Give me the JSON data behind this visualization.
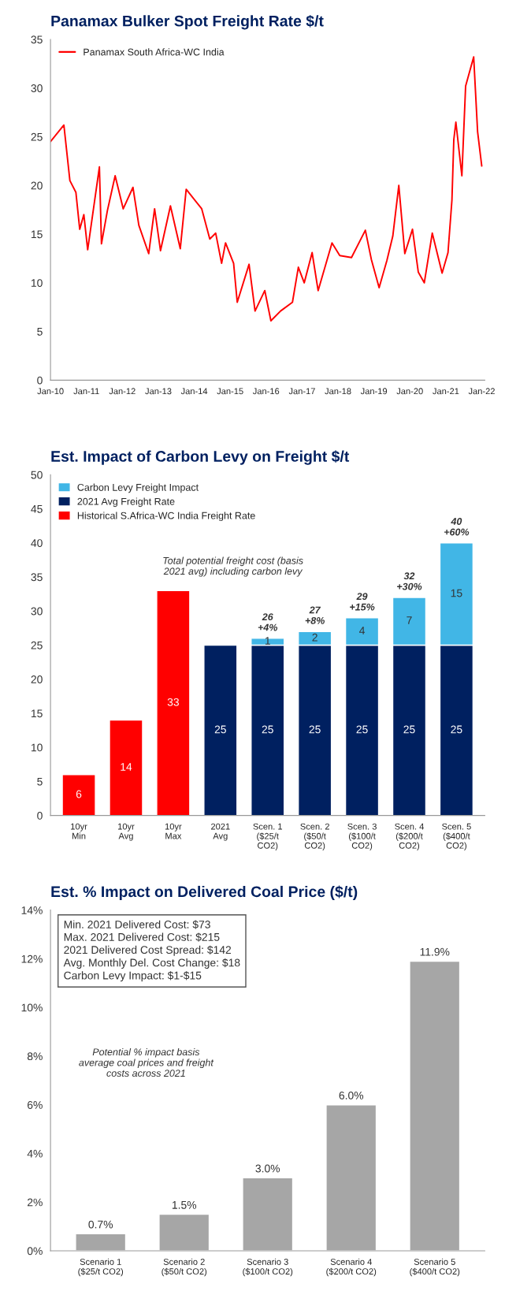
{
  "chart_data": [
    {
      "type": "line",
      "title": "Panamax Bulker Spot Freight Rate $/t",
      "legend": "top left",
      "xlim": [
        "2010-01-01",
        "2022-02-01"
      ],
      "xticks": [
        {
          "value": "2010-01-01",
          "label": "Jan-10"
        },
        {
          "value": "2011-01-01",
          "label": "Jan-11"
        },
        {
          "value": "2012-01-01",
          "label": "Jan-12"
        },
        {
          "value": "2013-01-01",
          "label": "Jan-13"
        },
        {
          "value": "2014-01-01",
          "label": "Jan-14"
        },
        {
          "value": "2015-01-01",
          "label": "Jan-15"
        },
        {
          "value": "2016-01-01",
          "label": "Jan-16"
        },
        {
          "value": "2017-01-01",
          "label": "Jan-17"
        },
        {
          "value": "2018-01-01",
          "label": "Jan-18"
        },
        {
          "value": "2019-01-01",
          "label": "Jan-19"
        },
        {
          "value": "2020-01-01",
          "label": "Jan-20"
        },
        {
          "value": "2021-01-01",
          "label": "Jan-21"
        },
        {
          "value": "2022-01-01",
          "label": "Jan-22"
        }
      ],
      "ylim": [
        0,
        35
      ],
      "yticks": [
        0,
        5,
        10,
        15,
        20,
        25,
        30,
        35
      ],
      "series": [
        {
          "name": "Panamax South Africa-WC India",
          "color": "#ff0000",
          "x": [
            "2010-01-01",
            "2010-05-17",
            "2010-07-17",
            "2010-09-16",
            "2010-10-25",
            "2010-12-06",
            "2011-01-14",
            "2011-05-13",
            "2011-06-03",
            "2011-08-02",
            "2011-10-20",
            "2012-01-10",
            "2012-04-18",
            "2012-06-17",
            "2012-09-25",
            "2012-11-24",
            "2013-01-23",
            "2013-05-04",
            "2013-08-12",
            "2013-10-11",
            "2014-03-18",
            "2014-06-08",
            "2014-08-07",
            "2014-10-06",
            "2014-11-15",
            "2015-02-05",
            "2015-03-14",
            "2015-07-12",
            "2015-09-11",
            "2015-12-19",
            "2016-02-19",
            "2016-05-27",
            "2016-09-25",
            "2016-11-24",
            "2017-01-23",
            "2017-04-13",
            "2017-06-13",
            "2017-11-01",
            "2018-01-19",
            "2018-05-18",
            "2018-10-06",
            "2018-12-06",
            "2019-02-23",
            "2019-05-13",
            "2019-07-12",
            "2019-09-11",
            "2019-11-11",
            "2020-01-28",
            "2020-03-27",
            "2020-05-27",
            "2020-08-16",
            "2020-11-24",
            "2021-01-23",
            "2021-03-04",
            "2021-03-23",
            "2021-04-13",
            "2021-06-13",
            "2021-07-21",
            "2021-10-11",
            "2021-11-20",
            "2022-01-01"
          ],
          "values": [
            24.5,
            26.2,
            20.5,
            19.3,
            15.5,
            17.0,
            13.4,
            21.9,
            14.0,
            17.4,
            21.0,
            17.6,
            19.8,
            15.9,
            13.0,
            17.6,
            13.3,
            17.9,
            13.5,
            19.6,
            17.6,
            14.5,
            15.1,
            12.0,
            14.1,
            12.0,
            8.0,
            11.9,
            7.1,
            9.2,
            6.1,
            7.1,
            8.0,
            11.6,
            10.0,
            13.1,
            9.2,
            14.1,
            12.8,
            12.6,
            15.4,
            12.4,
            9.5,
            12.3,
            14.8,
            20.0,
            13.0,
            15.5,
            11.1,
            10.0,
            15.1,
            11.0,
            13.1,
            18.5,
            24.7,
            26.5,
            21.0,
            30.2,
            33.2,
            25.5,
            22.0
          ]
        }
      ]
    },
    {
      "type": "bar",
      "title": "Est. Impact of Carbon Levy on Freight $/t",
      "stacked": true,
      "legend": "top left",
      "data_labels": true,
      "categories": [
        "10yr\nMin",
        "10yr\nAvg",
        "10yr\nMax",
        "2021\nAvg",
        "Scen. 1\n($25/t\nCO2)",
        "Scen. 2\n($50/t\nCO2)",
        "Scen. 3\n($100/t\nCO2)",
        "Scen. 4\n($200/t\nCO2)",
        "Scen. 5\n($400/t\nCO2)"
      ],
      "ylim": [
        0,
        50
      ],
      "yticks": [
        0,
        5,
        10,
        15,
        20,
        25,
        30,
        35,
        40,
        45,
        50
      ],
      "series": [
        {
          "name": "Historical S.Africa-WC India Freight Rate",
          "color": "#ff0000",
          "values": [
            6,
            14,
            33,
            null,
            null,
            null,
            null,
            null,
            null
          ]
        },
        {
          "name": "2021 Avg Freight Rate",
          "color": "#002060",
          "values": [
            null,
            null,
            null,
            25,
            25,
            25,
            25,
            25,
            25
          ]
        },
        {
          "name": "Carbon Levy Freight Impact",
          "color": "#41b6e6",
          "values": [
            null,
            null,
            null,
            null,
            1,
            2,
            4,
            7,
            15
          ]
        }
      ],
      "totals": [
        null,
        null,
        null,
        null,
        "26\n+4%",
        "27\n+8%",
        "29\n+15%",
        "32\n+30%",
        "40\n+60%"
      ],
      "annotations": [
        "Total potential freight cost (basis\n2021 avg) including carbon levy"
      ]
    },
    {
      "type": "bar",
      "title": "Est. % Impact on Delivered Coal Price ($/t)",
      "categories": [
        "Scenario 1\n($25/t CO2)",
        "Scenario 2\n($50/t CO2)",
        "Scenario 3\n($100/t CO2)",
        "Scenario 4\n($200/t CO2)",
        "Scenario 5\n($400/t CO2)"
      ],
      "values": [
        0.7,
        1.5,
        3.0,
        6.0,
        11.9
      ],
      "color": "#a6a6a6",
      "value_labels": [
        "0.7%",
        "1.5%",
        "3.0%",
        "6.0%",
        "11.9%"
      ],
      "ylim": [
        0,
        14
      ],
      "yticks": [
        {
          "value": 0,
          "label": "0%"
        },
        {
          "value": 2,
          "label": "2%"
        },
        {
          "value": 4,
          "label": "4%"
        },
        {
          "value": 6,
          "label": "6%"
        },
        {
          "value": 8,
          "label": "8%"
        },
        {
          "value": 10,
          "label": "10%"
        },
        {
          "value": 12,
          "label": "12%"
        },
        {
          "value": 14,
          "label": "14%"
        }
      ],
      "annotations": [
        "Min. 2021 Delivered Cost: $73\nMax. 2021 Delivered Cost: $215\n2021 Delivered Cost Spread: $142\nAvg. Monthly Del. Cost Change: $18\nCarbon Levy Impact: $1-$15",
        "Potential % impact basis\naverage coal prices and freight\ncosts across 2021"
      ]
    }
  ]
}
